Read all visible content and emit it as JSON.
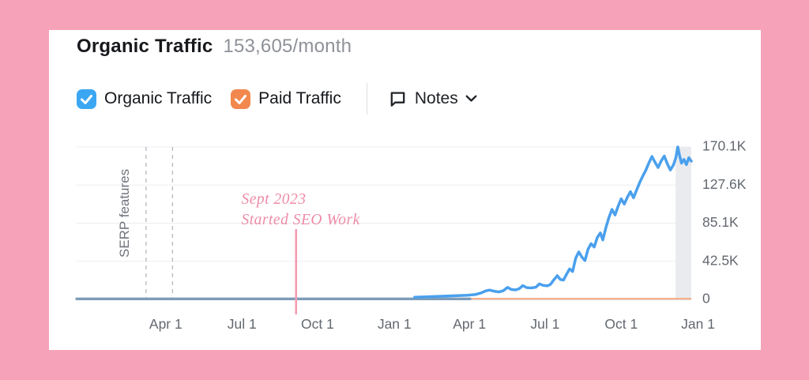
{
  "header": {
    "title": "Organic Traffic",
    "value": "153,605/month"
  },
  "toolbar": {
    "organic_checkbox": {
      "label": "Organic Traffic",
      "checked": true,
      "color": "#3ba7f2"
    },
    "paid_checkbox": {
      "label": "Paid Traffic",
      "checked": true,
      "color": "#f2884e"
    },
    "notes": {
      "label": "Notes"
    }
  },
  "chart_data": {
    "type": "line",
    "title": "Organic Traffic over time",
    "legend": [
      "Organic Traffic",
      "Paid Traffic"
    ],
    "grid": true,
    "y_axis": {
      "max": 170100,
      "ticks": [
        {
          "value": 170100,
          "label": "170.1K"
        },
        {
          "value": 127600,
          "label": "127.6K"
        },
        {
          "value": 85100,
          "label": "85.1K"
        },
        {
          "value": 42500,
          "label": "42.5K"
        },
        {
          "value": 0,
          "label": "0"
        }
      ]
    },
    "x_axis": {
      "ticks": [
        {
          "f": 0.145,
          "label": "Apr 1"
        },
        {
          "f": 0.269,
          "label": "Jul 1"
        },
        {
          "f": 0.392,
          "label": "Oct 1"
        },
        {
          "f": 0.517,
          "label": "Jan 1"
        },
        {
          "f": 0.639,
          "label": "Apr 1"
        },
        {
          "f": 0.762,
          "label": "Jul 1"
        },
        {
          "f": 0.886,
          "label": "Oct 1"
        },
        {
          "f": 1.011,
          "label": "Jan 1"
        }
      ]
    },
    "serp_markers": {
      "label": "SERP features",
      "fractions": [
        0.113,
        0.156
      ],
      "label_x_f": 0.085,
      "label_y_f": 0.435
    },
    "annotation": {
      "lines": [
        "Sept 2023",
        "Started SEO Work"
      ],
      "text_x_f": 0.268,
      "text_y_f": [
        0.373,
        0.508
      ],
      "line_x_f": 0.357,
      "line_y1_f": 0.539,
      "line_y2_f": 1.098
    },
    "band": {
      "from_f": 0.9745,
      "to_f": 1.0
    },
    "series": [
      {
        "name": "Organic Traffic",
        "color": "#4aa0ed",
        "muted_color": "#7d9cb8",
        "muted_until_f": 0.64,
        "muted_value": 650,
        "bright_from_f": 0.55,
        "points": [
          [
            0,
            600
          ],
          [
            0.06,
            620
          ],
          [
            0.12,
            650
          ],
          [
            0.18,
            700
          ],
          [
            0.24,
            720
          ],
          [
            0.3,
            780
          ],
          [
            0.36,
            850
          ],
          [
            0.42,
            950
          ],
          [
            0.47,
            1300
          ],
          [
            0.51,
            1800
          ],
          [
            0.55,
            2500
          ],
          [
            0.58,
            3200
          ],
          [
            0.61,
            4000
          ],
          [
            0.635,
            4600
          ],
          [
            0.648,
            5400
          ],
          [
            0.658,
            7200
          ],
          [
            0.666,
            9600
          ],
          [
            0.672,
            10400
          ],
          [
            0.679,
            9200
          ],
          [
            0.687,
            8400
          ],
          [
            0.694,
            9600
          ],
          [
            0.701,
            13400
          ],
          [
            0.707,
            11200
          ],
          [
            0.714,
            10600
          ],
          [
            0.72,
            12000
          ],
          [
            0.726,
            15400
          ],
          [
            0.732,
            13200
          ],
          [
            0.739,
            12800
          ],
          [
            0.747,
            13600
          ],
          [
            0.753,
            17400
          ],
          [
            0.759,
            15600
          ],
          [
            0.766,
            15200
          ],
          [
            0.771,
            16800
          ],
          [
            0.777,
            22400
          ],
          [
            0.782,
            26400
          ],
          [
            0.787,
            22200
          ],
          [
            0.792,
            21600
          ],
          [
            0.797,
            28000
          ],
          [
            0.802,
            34000
          ],
          [
            0.807,
            31200
          ],
          [
            0.812,
            46000
          ],
          [
            0.817,
            53000
          ],
          [
            0.822,
            47200
          ],
          [
            0.827,
            43400
          ],
          [
            0.832,
            56000
          ],
          [
            0.837,
            62200
          ],
          [
            0.842,
            58400
          ],
          [
            0.847,
            69000
          ],
          [
            0.852,
            74200
          ],
          [
            0.856,
            66400
          ],
          [
            0.861,
            80000
          ],
          [
            0.866,
            91200
          ],
          [
            0.871,
            100400
          ],
          [
            0.876,
            94200
          ],
          [
            0.881,
            104000
          ],
          [
            0.886,
            112200
          ],
          [
            0.891,
            106400
          ],
          [
            0.896,
            114000
          ],
          [
            0.901,
            120200
          ],
          [
            0.906,
            113400
          ],
          [
            0.911,
            122000
          ],
          [
            0.916,
            130200
          ],
          [
            0.921,
            137400
          ],
          [
            0.926,
            144000
          ],
          [
            0.931,
            152200
          ],
          [
            0.936,
            159400
          ],
          [
            0.941,
            153000
          ],
          [
            0.946,
            147200
          ],
          [
            0.951,
            154400
          ],
          [
            0.956,
            160000
          ],
          [
            0.961,
            151200
          ],
          [
            0.966,
            144400
          ],
          [
            0.971,
            150000
          ],
          [
            0.975,
            158200
          ],
          [
            0.978,
            170100
          ],
          [
            0.981,
            160400
          ],
          [
            0.984,
            152000
          ],
          [
            0.988,
            156200
          ],
          [
            0.992,
            150400
          ],
          [
            0.996,
            158000
          ],
          [
            1,
            154200
          ]
        ]
      },
      {
        "name": "Paid Traffic",
        "color": "#f4b08c",
        "points": [
          [
            0,
            700
          ],
          [
            0.5,
            700
          ],
          [
            0.75,
            800
          ],
          [
            1,
            800
          ]
        ]
      }
    ],
    "colors": {
      "grid": "#ededf1",
      "axis": "#e1e3e7",
      "dashed_marker": "#b4b8be",
      "band": "#e9ebee",
      "tick_text": "#63686f",
      "serp_text": "#6e737b",
      "annotation_text": "#ee8ba6",
      "annotation_line": "#f19cb2",
      "frame_pink": "#f6a3b9"
    }
  }
}
